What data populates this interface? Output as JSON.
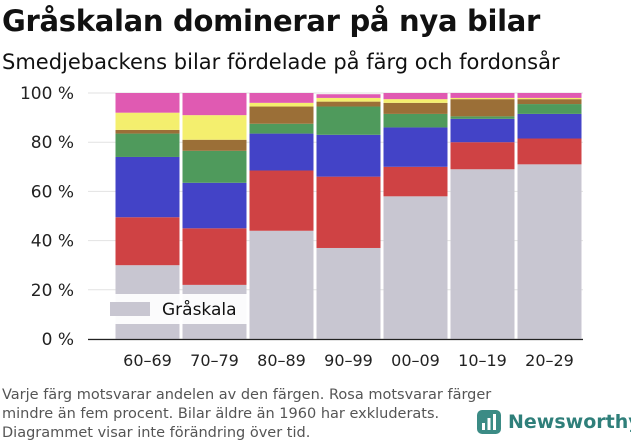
{
  "header": {
    "title": "Gråskalan dominerar på nya bilar",
    "subtitle": "Smedjebackens bilar fördelade på färg och fordonsår"
  },
  "footer": {
    "note": "Varje färg motsvarar andelen av den färgen. Rosa motsvarar färger mindre än fem procent. Bilar äldre än 1960 har exkluderats. Diagrammet visar inte förändring över tid.",
    "brand": "Newsworthy",
    "brand_color": "#3b8b85"
  },
  "chart_data": {
    "type": "bar",
    "stacked": true,
    "categories": [
      "60–69",
      "70–79",
      "80–89",
      "90–99",
      "00–09",
      "10–19",
      "20–29"
    ],
    "ylim": [
      0,
      100
    ],
    "yticks": [
      0,
      20,
      40,
      60,
      80,
      100
    ],
    "ytick_labels": [
      "0 %",
      "20 %",
      "40 %",
      "60 %",
      "80 %",
      "100 %"
    ],
    "grid": true,
    "legend": {
      "position": "bottom-left",
      "entries": [
        "Gråskala"
      ]
    },
    "series": [
      {
        "name": "Gråskala",
        "color": "#c8c6d1",
        "values": [
          30,
          22,
          44,
          37,
          58,
          69,
          71
        ]
      },
      {
        "color": "#cf4244",
        "values": [
          19.5,
          23,
          24.5,
          29,
          12,
          11,
          10.5
        ]
      },
      {
        "color": "#4343c7",
        "values": [
          24.5,
          18.5,
          15,
          17,
          16,
          9.5,
          10
        ]
      },
      {
        "color": "#4f9a5c",
        "values": [
          9.5,
          13,
          4,
          11.5,
          5.5,
          1,
          4
        ]
      },
      {
        "color": "#9b6f37",
        "values": [
          1.5,
          4.5,
          7,
          2,
          4.5,
          7,
          2
        ]
      },
      {
        "color": "#f4ef6e",
        "values": [
          7,
          10,
          1.5,
          1.5,
          1.5,
          0.5,
          0.5
        ]
      },
      {
        "color": "#e05ab2",
        "values": [
          8,
          9,
          4,
          1.5,
          2.5,
          2,
          2
        ]
      }
    ]
  }
}
